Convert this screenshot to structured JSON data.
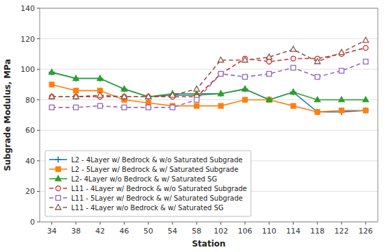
{
  "chart_data": {
    "type": "line",
    "xlabel": "Station",
    "ylabel": "Subgrade Modulus, MPa",
    "categories": [
      "34",
      "38",
      "42",
      "46",
      "50",
      "54",
      "58",
      "102",
      "106",
      "110",
      "114",
      "118",
      "122",
      "126"
    ],
    "series": [
      {
        "name": "L2 - 4Layer w/ Bedrock & w/o Saturated Subgrade",
        "marker": "plus",
        "line_style": "solid",
        "values": [
          98,
          94,
          94,
          87,
          82,
          83,
          83,
          84,
          87,
          80,
          85,
          72,
          72,
          73
        ]
      },
      {
        "name": "L2 - 5Layer w/ Bedrock & w/ Saturated Subgrade",
        "marker": "square",
        "line_style": "solid",
        "values": [
          90,
          86,
          86,
          80,
          78,
          76,
          76,
          76,
          80,
          80,
          76,
          72,
          73,
          73
        ]
      },
      {
        "name": "L2- 4Layer w/o Bedrock & w/ Saturated SG",
        "marker": "triangle",
        "line_style": "solid",
        "values": [
          98,
          94,
          94,
          87,
          82,
          84,
          84,
          84,
          87,
          80,
          85,
          80,
          80,
          80
        ]
      },
      {
        "name": "L11 - 4Layer w/ Bedrock & w/o Saturated Subgrade",
        "marker": "circle-open",
        "line_style": "dashed",
        "values": [
          82,
          82,
          82,
          82,
          82,
          82,
          82,
          97,
          107,
          105,
          107,
          107,
          110,
          114
        ]
      },
      {
        "name": "L11 - 5Layer w/ Bedrock & w/ Saturated Subgrade",
        "marker": "square-open",
        "line_style": "dashed",
        "values": [
          75,
          75,
          76,
          75,
          75,
          75,
          80,
          97,
          95,
          97,
          101,
          95,
          99,
          105
        ]
      },
      {
        "name": "L11 - 4Layer w/o Bedrock & w/ Saturated SG",
        "marker": "triangle-open",
        "line_style": "dashed",
        "values": [
          82,
          82,
          83,
          82,
          82,
          83,
          87,
          106,
          106,
          108,
          113,
          105,
          111,
          119
        ]
      }
    ],
    "ylim": [
      0,
      140
    ],
    "yticks": [
      0,
      20,
      40,
      60,
      80,
      100,
      120,
      140
    ],
    "grid": true,
    "legend": "lower left"
  }
}
